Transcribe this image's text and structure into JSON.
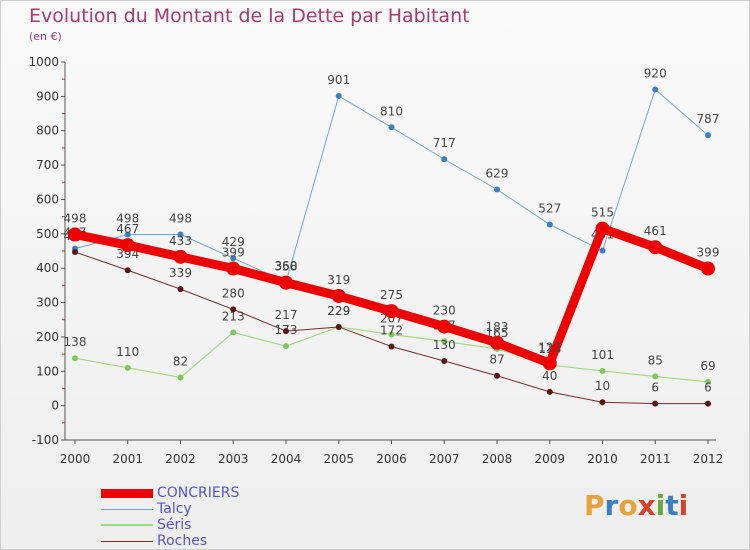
{
  "title": "Evolution du Montant de la Dette par Habitant",
  "subtitle": "(en €)",
  "logo": {
    "text": "Proxiti",
    "letters": [
      "P",
      "r",
      "o",
      "x",
      "i",
      "t",
      "i"
    ],
    "colors": [
      "#e8a23a",
      "#3a7fc1",
      "#e8a23a",
      "#d8402c",
      "#6aaa3a",
      "#3a7fc1",
      "#d8402c"
    ]
  },
  "chart_data": {
    "type": "line",
    "x": [
      "2000",
      "2001",
      "2002",
      "2003",
      "2004",
      "2005",
      "2006",
      "2007",
      "2008",
      "2009",
      "2010",
      "2011",
      "2012"
    ],
    "yticks": [
      -100,
      0,
      100,
      200,
      300,
      400,
      500,
      600,
      700,
      800,
      900,
      1000
    ],
    "ylim": [
      -100,
      1000
    ],
    "grid": false,
    "legend_position": "bottom-left",
    "series": [
      {
        "name": "Talcy",
        "color": "#6ea6d8",
        "marker": "#3a7fc1",
        "width": 1,
        "r": 3,
        "values": [
          457,
          498,
          498,
          429,
          360,
          901,
          810,
          717,
          629,
          527,
          451,
          920,
          787
        ],
        "labels": [
          "457",
          "498",
          "498",
          "429",
          "360",
          "901",
          "810",
          "717",
          "629",
          "527",
          "451",
          "920",
          "787"
        ]
      },
      {
        "name": "Séris",
        "color": "#9fd88a",
        "marker": "#7cc85a",
        "width": 1.2,
        "r": 3,
        "values": [
          138,
          110,
          82,
          213,
          173,
          229,
          207,
          187,
          165,
          118,
          101,
          85,
          69
        ],
        "labels": [
          "138",
          "110",
          "82",
          "213",
          "173",
          "229",
          "207",
          "187",
          "165",
          "118",
          "101",
          "85",
          "69"
        ]
      },
      {
        "name": "Roches",
        "color": "#7a2a2a",
        "marker": "#5a1515",
        "width": 1,
        "r": 3,
        "values": [
          447,
          394,
          339,
          280,
          217,
          229,
          172,
          130,
          87,
          40,
          10,
          6,
          6
        ],
        "labels": [
          "447",
          "394",
          "339",
          "280",
          "217",
          "229",
          "172",
          "130",
          "87",
          "40",
          "10",
          "6",
          "6"
        ]
      },
      {
        "name": "CONCRIERS",
        "color": "#ee0000",
        "marker": "#ee0000",
        "width": 9,
        "r": 7,
        "values": [
          498,
          467,
          433,
          399,
          358,
          319,
          275,
          230,
          183,
          123,
          515,
          461,
          399
        ],
        "labels": [
          "498",
          "467",
          "433",
          "399",
          "358",
          "319",
          "275",
          "230",
          "183",
          "123",
          "515",
          "461",
          "399"
        ]
      }
    ],
    "legend_order": [
      "CONCRIERS",
      "Talcy",
      "Séris",
      "Roches"
    ]
  }
}
